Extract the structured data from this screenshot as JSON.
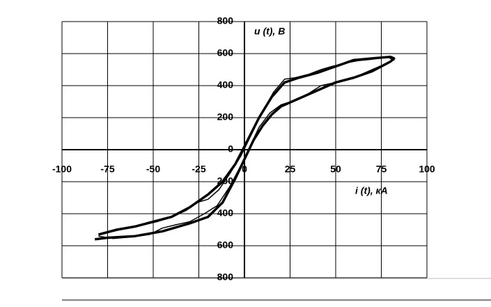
{
  "chart_data": {
    "type": "line",
    "y_label": "u (t), B",
    "x_label": "i (t), кА",
    "xlim": [
      -100,
      100
    ],
    "xticks": [
      -100,
      -75,
      -50,
      -25,
      0,
      25,
      50,
      75,
      100
    ],
    "ylim": [
      -800,
      800
    ],
    "yticks": [
      {
        "value": -800,
        "label": "800"
      },
      {
        "value": -600,
        "label": "600"
      },
      {
        "value": -400,
        "label": "400"
      },
      {
        "value": -200,
        "label": "200"
      },
      0,
      200,
      400,
      600,
      800
    ],
    "grid": true,
    "series": [
      {
        "color": "#000000",
        "line_width": 3.5,
        "x": [
          -82,
          -75,
          -60,
          -45,
          -30,
          -20,
          -12,
          -5,
          0,
          5,
          10,
          15,
          20,
          30,
          40,
          50,
          60,
          70,
          80,
          82,
          80,
          70,
          60,
          50,
          40,
          30,
          22,
          15,
          8,
          0,
          -5,
          -12,
          -20,
          -30,
          -40,
          -50,
          -60,
          -70,
          -80
        ],
        "values": [
          -560,
          -550,
          -540,
          -510,
          -460,
          -420,
          -330,
          -180,
          -60,
          60,
          150,
          220,
          270,
          320,
          370,
          420,
          450,
          490,
          550,
          570,
          580,
          570,
          560,
          520,
          480,
          450,
          420,
          330,
          200,
          20,
          -90,
          -200,
          -280,
          -360,
          -420,
          -450,
          -480,
          -500,
          -530
        ]
      },
      {
        "color": "#000000",
        "line_width": 1.5,
        "x": [
          -80,
          -72,
          -62,
          -52,
          -45,
          -38,
          -30,
          -22,
          -15,
          -8,
          -2,
          3,
          8,
          14,
          20,
          28,
          35,
          42,
          50,
          58,
          66,
          74,
          82,
          78,
          70,
          62,
          55,
          48,
          42,
          35,
          28,
          22,
          16,
          10,
          4,
          -2,
          -8,
          -14,
          -20,
          -26,
          -32,
          -40,
          -48,
          -56,
          -64,
          -72,
          -80
        ],
        "values": [
          -540,
          -555,
          -545,
          -530,
          -490,
          -470,
          -450,
          -400,
          -350,
          -230,
          -100,
          20,
          140,
          230,
          280,
          310,
          350,
          400,
          420,
          440,
          480,
          520,
          560,
          580,
          565,
          555,
          540,
          520,
          500,
          470,
          450,
          440,
          360,
          240,
          100,
          -40,
          -150,
          -250,
          -310,
          -330,
          -380,
          -420,
          -450,
          -470,
          -490,
          -510,
          -530
        ]
      }
    ]
  }
}
